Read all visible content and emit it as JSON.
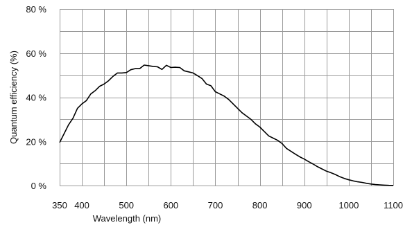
{
  "chart_data": {
    "type": "line",
    "title": "",
    "xlabel": "Wavelength (nm)",
    "ylabel": "Quantum efficiency (%)",
    "xlim": [
      350,
      1100
    ],
    "ylim": [
      0,
      80
    ],
    "grid": true,
    "x_ticks": [
      350,
      400,
      500,
      600,
      700,
      800,
      900,
      1000,
      1100
    ],
    "x_tick_labels": [
      "350",
      "400",
      "500",
      "600",
      "700",
      "800",
      "900",
      "1000",
      "1100"
    ],
    "x_gridlines": [
      350,
      400,
      450,
      500,
      550,
      600,
      650,
      700,
      750,
      800,
      850,
      900,
      950,
      1000,
      1050,
      1100
    ],
    "y_ticks": [
      0,
      20,
      40,
      60,
      80
    ],
    "y_tick_labels": [
      "0 %",
      "20 %",
      "40 %",
      "60 %",
      "80 %"
    ],
    "y_gridlines": [
      0,
      10,
      20,
      30,
      40,
      50,
      60,
      70,
      80
    ],
    "series": [
      {
        "color": "#000000",
        "x": [
          350,
          360,
          370,
          380,
          390,
          400,
          410,
          420,
          430,
          440,
          450,
          460,
          470,
          480,
          490,
          500,
          510,
          520,
          530,
          540,
          550,
          560,
          570,
          580,
          590,
          600,
          610,
          620,
          630,
          640,
          650,
          660,
          670,
          680,
          690,
          700,
          710,
          720,
          730,
          740,
          750,
          760,
          770,
          780,
          790,
          800,
          810,
          820,
          830,
          840,
          850,
          860,
          870,
          880,
          890,
          900,
          910,
          920,
          930,
          940,
          950,
          960,
          970,
          980,
          990,
          1000,
          1010,
          1020,
          1030,
          1040,
          1050,
          1060,
          1070,
          1080,
          1090,
          1100
        ],
        "y": [
          19.5,
          23.5,
          27.5,
          30.5,
          35.0,
          37.0,
          38.5,
          41.5,
          43.0,
          45.0,
          46.0,
          47.5,
          49.5,
          51.0,
          51.0,
          51.2,
          52.5,
          53.0,
          53.0,
          54.6,
          54.3,
          54.0,
          53.8,
          52.6,
          54.5,
          53.5,
          53.6,
          53.5,
          52.0,
          51.5,
          51.0,
          49.8,
          48.5,
          46.0,
          45.2,
          42.5,
          41.5,
          40.5,
          39.0,
          37.0,
          35.0,
          33.0,
          31.5,
          30.0,
          28.0,
          26.5,
          24.5,
          22.5,
          21.5,
          20.5,
          19.0,
          16.8,
          15.5,
          14.2,
          13.0,
          12.0,
          10.8,
          9.7,
          8.5,
          7.5,
          6.5,
          5.8,
          5.0,
          4.0,
          3.2,
          2.6,
          2.1,
          1.7,
          1.4,
          1.0,
          0.7,
          0.45,
          0.3,
          0.2,
          0.1,
          0.05
        ]
      }
    ]
  }
}
